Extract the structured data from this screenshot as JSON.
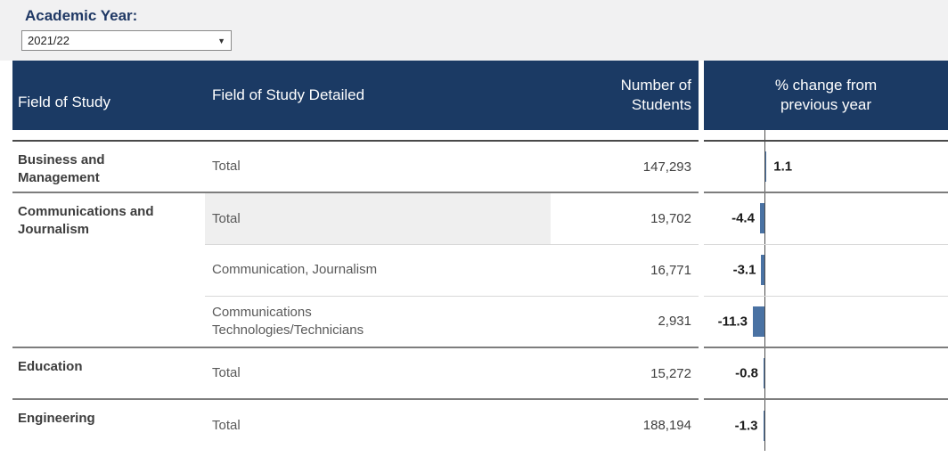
{
  "colors": {
    "topbar_bg": "#f1f1f2",
    "header_bg": "#1b3a64",
    "navy": "#1f3864",
    "bar": "#4a72a3",
    "axis": "#4d4d4d"
  },
  "filter": {
    "label": "Academic Year:",
    "value": "2021/22"
  },
  "table": {
    "headers": {
      "field": "Field of Study",
      "detail": "Field of Study Detailed",
      "students_line1": "Number of",
      "students_line2": "Students",
      "pct_line1": "% change from",
      "pct_line2": "previous year"
    },
    "rows": [
      {
        "field": "Business and\nManagement",
        "field_rowspan": 1,
        "detail": "Total",
        "students": "147,293",
        "pct": 1.1,
        "pct_label": "1.1",
        "sep": "first"
      },
      {
        "field": "Communications and\nJournalism",
        "field_rowspan": 3,
        "detail": "Total",
        "students": "19,702",
        "pct": -4.4,
        "pct_label": "-4.4",
        "sep": "group",
        "detail_highlight": true
      },
      {
        "field": null,
        "detail": "Communication, Journalism",
        "students": "16,771",
        "pct": -3.1,
        "pct_label": "-3.1",
        "sep": "inner"
      },
      {
        "field": null,
        "detail": "Communications\nTechnologies/Technicians",
        "students": "2,931",
        "pct": -11.3,
        "pct_label": "-11.3",
        "sep": "inner"
      },
      {
        "field": "Education",
        "field_rowspan": 1,
        "detail": "Total",
        "students": "15,272",
        "pct": -0.8,
        "pct_label": "-0.8",
        "sep": "group"
      },
      {
        "field": "Engineering",
        "field_rowspan": 1,
        "detail": "Total",
        "students": "188,194",
        "pct": -1.3,
        "pct_label": "-1.3",
        "sep": "group"
      }
    ]
  },
  "chart_data": {
    "type": "table",
    "title": "",
    "columns": [
      "Field of Study",
      "Field of Study Detailed",
      "Number of Students",
      "% change from previous year"
    ],
    "rows": [
      [
        "Business and Management",
        "Total",
        147293,
        1.1
      ],
      [
        "Communications and Journalism",
        "Total",
        19702,
        -4.4
      ],
      [
        "Communications and Journalism",
        "Communication, Journalism",
        16771,
        -3.1
      ],
      [
        "Communications and Journalism",
        "Communications Technologies/Technicians",
        2931,
        -11.3
      ],
      [
        "Education",
        "Total",
        15272,
        -0.8
      ],
      [
        "Engineering",
        "Total",
        188194,
        -1.3
      ]
    ],
    "embedded_bar": {
      "column": "% change from previous year",
      "zero_axis": true,
      "bar_color": "#4a72a3"
    },
    "filter": {
      "label": "Academic Year:",
      "selected": "2021/22"
    }
  }
}
